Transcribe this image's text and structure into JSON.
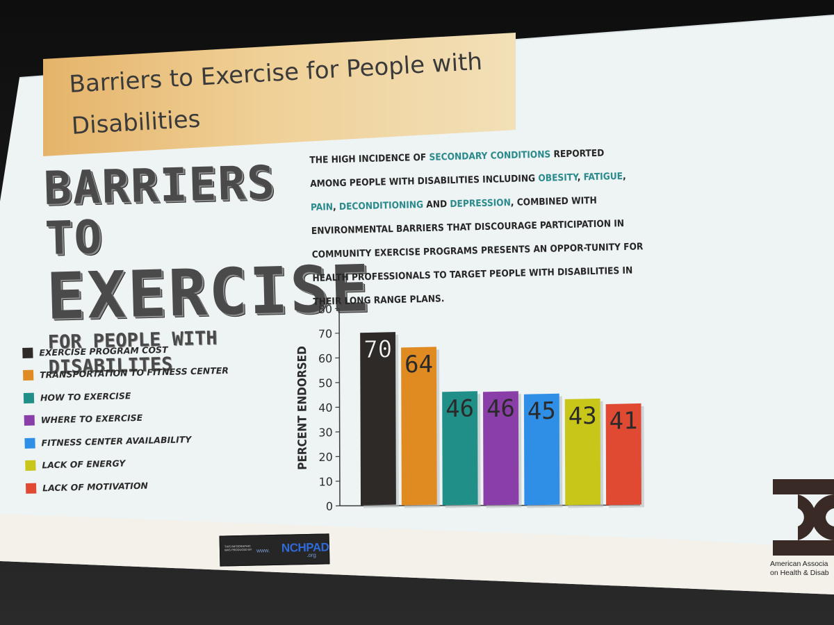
{
  "slide": {
    "title": "Barriers to Exercise for People with Disabilities",
    "heading_line1": "BARRIERS TO",
    "heading_line2": "EXERCISE",
    "heading_line3": "FOR PEOPLE WITH DISABILITES",
    "paragraph": {
      "t1": "The high incidence of ",
      "h1": "secondary conditions",
      "t2": " reported among people with disabilities including ",
      "h2": "obesity",
      "t3": ", ",
      "h3": "fatigue",
      "t4": ", ",
      "h4": "pain",
      "t5": ", ",
      "h5": "deconditioning",
      "t6": " and ",
      "h6": "depression",
      "t7": ", combined with environmental barriers that discourage participation in community exercise programs presents an oppor-tunity for health professionals to target people with disabilities in their long range plans."
    },
    "footer_badge": {
      "small_text": "THIS INFOGRAPHIC WAS PRODUCED BY",
      "www": "www.",
      "brand": "NCHPAD",
      "org": ".org"
    },
    "org_text_line1": "American Associa",
    "org_text_line2": "on Health & Disab"
  },
  "colors": {
    "title_bar": "#e9bf7a",
    "highlight_text": "#2a8a8c",
    "slide_bg": "#eef3f4"
  },
  "chart_data": {
    "type": "bar",
    "title": "",
    "xlabel": "",
    "ylabel": "Percent Endorsed",
    "ylim": [
      0,
      80
    ],
    "yticks": [
      0,
      10,
      20,
      30,
      40,
      50,
      60,
      70,
      80
    ],
    "grid": false,
    "legend_position": "left",
    "categories": [
      "Exercise program cost",
      "Transportation to fitness center",
      "How to exercise",
      "Where to exercise",
      "Fitness center availability",
      "Lack of energy",
      "Lack of motivation"
    ],
    "values": [
      70,
      64,
      46,
      46,
      45,
      43,
      41
    ],
    "colors": [
      "#2d2a28",
      "#e08a22",
      "#1f8f87",
      "#8a3fa8",
      "#2f8fe6",
      "#c9c61a",
      "#e04a33"
    ]
  }
}
